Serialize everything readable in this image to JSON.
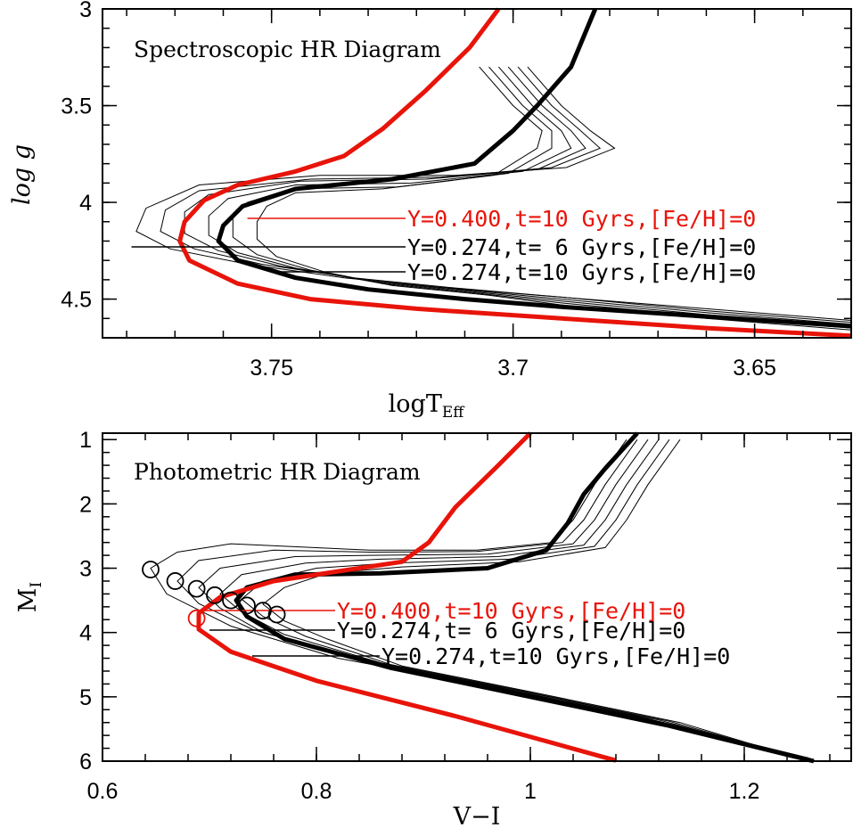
{
  "colors": {
    "black": "#000000",
    "red": "#e8140a",
    "background": "#ffffff"
  },
  "chart_data": [
    {
      "type": "line",
      "title": "Spectroscopic HR Diagram",
      "xlabel": "logT",
      "xlabel_sub": "Eff",
      "ylabel": "log g",
      "xlim": [
        3.785,
        3.63
      ],
      "ylim": [
        4.7,
        3.0
      ],
      "x_ticks": [
        3.75,
        3.7,
        3.65
      ],
      "x_tick_labels": [
        "3.75",
        "3.7",
        "3.65"
      ],
      "y_ticks": [
        3,
        3.5,
        4,
        4.5
      ],
      "y_tick_labels": [
        "3",
        "3.5",
        "4",
        "4.5"
      ],
      "x_minor_step": 0.01,
      "y_minor_step": 0.1,
      "thin_series": [
        [
          [
            3.697,
            3.3
          ],
          [
            3.69,
            3.5
          ],
          [
            3.684,
            3.63
          ],
          [
            3.679,
            3.72
          ],
          [
            3.689,
            3.82
          ],
          [
            3.712,
            3.86
          ],
          [
            3.74,
            3.86
          ],
          [
            3.765,
            3.91
          ],
          [
            3.776,
            4.03
          ],
          [
            3.778,
            4.15
          ],
          [
            3.771,
            4.24
          ],
          [
            3.755,
            4.32
          ],
          [
            3.735,
            4.39
          ],
          [
            3.715,
            4.44
          ],
          [
            3.69,
            4.49
          ],
          [
            3.66,
            4.55
          ],
          [
            3.63,
            4.61
          ]
        ],
        [
          [
            3.699,
            3.3
          ],
          [
            3.692,
            3.5
          ],
          [
            3.686,
            3.63
          ],
          [
            3.682,
            3.72
          ],
          [
            3.692,
            3.82
          ],
          [
            3.715,
            3.87
          ],
          [
            3.742,
            3.88
          ],
          [
            3.765,
            3.94
          ],
          [
            3.772,
            4.04
          ],
          [
            3.773,
            4.15
          ],
          [
            3.766,
            4.24
          ],
          [
            3.752,
            4.32
          ],
          [
            3.733,
            4.39
          ],
          [
            3.713,
            4.44
          ],
          [
            3.69,
            4.49
          ],
          [
            3.66,
            4.56
          ],
          [
            3.63,
            4.62
          ]
        ],
        [
          [
            3.701,
            3.3
          ],
          [
            3.694,
            3.5
          ],
          [
            3.688,
            3.63
          ],
          [
            3.685,
            3.72
          ],
          [
            3.695,
            3.83
          ],
          [
            3.718,
            3.88
          ],
          [
            3.744,
            3.89
          ],
          [
            3.763,
            3.96
          ],
          [
            3.768,
            4.05
          ],
          [
            3.768,
            4.16
          ],
          [
            3.761,
            4.25
          ],
          [
            3.748,
            4.33
          ],
          [
            3.731,
            4.4
          ],
          [
            3.711,
            4.45
          ],
          [
            3.69,
            4.5
          ],
          [
            3.66,
            4.57
          ],
          [
            3.63,
            4.63
          ]
        ],
        [
          [
            3.703,
            3.3
          ],
          [
            3.696,
            3.5
          ],
          [
            3.69,
            3.63
          ],
          [
            3.688,
            3.72
          ],
          [
            3.698,
            3.84
          ],
          [
            3.721,
            3.9
          ],
          [
            3.745,
            3.91
          ],
          [
            3.759,
            3.98
          ],
          [
            3.763,
            4.07
          ],
          [
            3.763,
            4.17
          ],
          [
            3.757,
            4.26
          ],
          [
            3.745,
            4.34
          ],
          [
            3.729,
            4.41
          ],
          [
            3.709,
            4.46
          ],
          [
            3.69,
            4.51
          ],
          [
            3.66,
            4.58
          ],
          [
            3.63,
            4.64
          ]
        ],
        [
          [
            3.705,
            3.3
          ],
          [
            3.698,
            3.5
          ],
          [
            3.692,
            3.63
          ],
          [
            3.692,
            3.72
          ],
          [
            3.701,
            3.85
          ],
          [
            3.724,
            3.92
          ],
          [
            3.746,
            3.93
          ],
          [
            3.755,
            4.0
          ],
          [
            3.758,
            4.08
          ],
          [
            3.758,
            4.18
          ],
          [
            3.753,
            4.27
          ],
          [
            3.742,
            4.35
          ],
          [
            3.727,
            4.42
          ],
          [
            3.707,
            4.47
          ],
          [
            3.69,
            4.52
          ],
          [
            3.66,
            4.59
          ],
          [
            3.63,
            4.65
          ]
        ],
        [
          [
            3.707,
            3.3
          ],
          [
            3.7,
            3.5
          ],
          [
            3.694,
            3.63
          ],
          [
            3.695,
            3.72
          ],
          [
            3.704,
            3.86
          ],
          [
            3.727,
            3.93
          ],
          [
            3.745,
            3.95
          ],
          [
            3.751,
            4.02
          ],
          [
            3.753,
            4.1
          ],
          [
            3.753,
            4.19
          ],
          [
            3.749,
            4.28
          ],
          [
            3.739,
            4.36
          ],
          [
            3.725,
            4.43
          ],
          [
            3.705,
            4.48
          ],
          [
            3.69,
            4.53
          ],
          [
            3.66,
            4.6
          ],
          [
            3.63,
            4.66
          ]
        ]
      ],
      "series": [
        {
          "name": "Y=0.274,t= 6 Gyrs,[Fe/H]=0",
          "color": "#000000",
          "points": [
            [
              3.683,
              3.0
            ],
            [
              3.688,
              3.3
            ],
            [
              3.695,
              3.5
            ],
            [
              3.7,
              3.63
            ],
            [
              3.708,
              3.8
            ],
            [
              3.725,
              3.88
            ],
            [
              3.745,
              3.93
            ],
            [
              3.756,
              4.02
            ],
            [
              3.76,
              4.12
            ],
            [
              3.761,
              4.2
            ],
            [
              3.757,
              4.3
            ],
            [
              3.745,
              4.39
            ],
            [
              3.73,
              4.45
            ],
            [
              3.71,
              4.5
            ],
            [
              3.69,
              4.54
            ],
            [
              3.66,
              4.59
            ],
            [
              3.63,
              4.64
            ]
          ]
        },
        {
          "name": "Y=0.400,t=10 Gyrs,[Fe/H]=0",
          "color": "#e8140a",
          "points": [
            [
              3.703,
              3.0
            ],
            [
              3.709,
              3.2
            ],
            [
              3.718,
              3.42
            ],
            [
              3.727,
              3.62
            ],
            [
              3.735,
              3.76
            ],
            [
              3.745,
              3.84
            ],
            [
              3.757,
              3.91
            ],
            [
              3.764,
              3.99
            ],
            [
              3.768,
              4.1
            ],
            [
              3.769,
              4.2
            ],
            [
              3.767,
              4.3
            ],
            [
              3.757,
              4.42
            ],
            [
              3.742,
              4.5
            ],
            [
              3.72,
              4.55
            ],
            [
              3.69,
              4.6
            ],
            [
              3.66,
              4.65
            ],
            [
              3.63,
              4.69
            ]
          ]
        }
      ],
      "legend": [
        {
          "text": "Y=0.400,t=10 Gyrs,[Fe/H]=0",
          "color": "#e8140a",
          "from": [
            3.755,
            4.08
          ]
        },
        {
          "text": "Y=0.274,t= 6 Gyrs,[Fe/H]=0",
          "color": "#000000",
          "from": [
            3.779,
            4.22
          ]
        },
        {
          "text": "Y=0.274,t=10 Gyrs,[Fe/H]=0",
          "color": "#000000",
          "from": [
            3.749,
            4.35
          ]
        }
      ]
    },
    {
      "type": "line",
      "title": "Photometric HR Diagram",
      "xlabel": "V−I",
      "ylabel": "M",
      "ylabel_sub": "I",
      "xlim": [
        0.6,
        1.3
      ],
      "ylim": [
        6,
        0.9
      ],
      "x_ticks": [
        0.6,
        0.8,
        1,
        1.2
      ],
      "x_tick_labels": [
        "0.6",
        "0.8",
        "1",
        "1.2"
      ],
      "y_ticks": [
        1,
        2,
        3,
        4,
        5,
        6
      ],
      "y_tick_labels": [
        "1",
        "2",
        "3",
        "4",
        "5",
        "6"
      ],
      "x_minor_step": 0.04,
      "y_minor_step": 0.2,
      "thin_series": [
        [
          [
            1.09,
            1.0
          ],
          [
            1.06,
            1.7
          ],
          [
            1.04,
            2.25
          ],
          [
            1.02,
            2.6
          ],
          [
            0.95,
            2.72
          ],
          [
            0.85,
            2.72
          ],
          [
            0.72,
            2.62
          ],
          [
            0.67,
            2.75
          ],
          [
            0.645,
            3.0
          ],
          [
            0.66,
            3.4
          ],
          [
            0.72,
            3.9
          ],
          [
            0.82,
            4.4
          ],
          [
            0.95,
            4.8
          ],
          [
            1.1,
            5.3
          ],
          [
            1.26,
            5.95
          ]
        ],
        [
          [
            1.1,
            1.0
          ],
          [
            1.07,
            1.7
          ],
          [
            1.05,
            2.25
          ],
          [
            1.03,
            2.6
          ],
          [
            0.95,
            2.74
          ],
          [
            0.85,
            2.75
          ],
          [
            0.76,
            2.72
          ],
          [
            0.69,
            2.88
          ],
          [
            0.67,
            3.2
          ],
          [
            0.69,
            3.55
          ],
          [
            0.74,
            3.95
          ],
          [
            0.84,
            4.42
          ],
          [
            0.96,
            4.82
          ],
          [
            1.1,
            5.32
          ],
          [
            1.26,
            5.96
          ]
        ],
        [
          [
            1.11,
            1.0
          ],
          [
            1.08,
            1.7
          ],
          [
            1.06,
            2.25
          ],
          [
            1.04,
            2.62
          ],
          [
            0.96,
            2.78
          ],
          [
            0.85,
            2.8
          ],
          [
            0.78,
            2.82
          ],
          [
            0.71,
            3.0
          ],
          [
            0.69,
            3.3
          ],
          [
            0.71,
            3.62
          ],
          [
            0.75,
            4.0
          ],
          [
            0.85,
            4.45
          ],
          [
            0.97,
            4.85
          ],
          [
            1.11,
            5.34
          ],
          [
            1.26,
            5.97
          ]
        ],
        [
          [
            1.12,
            1.0
          ],
          [
            1.09,
            1.7
          ],
          [
            1.07,
            2.25
          ],
          [
            1.05,
            2.64
          ],
          [
            0.97,
            2.82
          ],
          [
            0.86,
            2.86
          ],
          [
            0.79,
            2.92
          ],
          [
            0.73,
            3.1
          ],
          [
            0.71,
            3.4
          ],
          [
            0.73,
            3.68
          ],
          [
            0.77,
            4.03
          ],
          [
            0.86,
            4.47
          ],
          [
            0.98,
            4.87
          ],
          [
            1.12,
            5.36
          ],
          [
            1.26,
            5.98
          ]
        ],
        [
          [
            1.13,
            1.0
          ],
          [
            1.1,
            1.7
          ],
          [
            1.08,
            2.25
          ],
          [
            1.06,
            2.66
          ],
          [
            0.98,
            2.86
          ],
          [
            0.87,
            2.92
          ],
          [
            0.8,
            3.0
          ],
          [
            0.75,
            3.2
          ],
          [
            0.73,
            3.48
          ],
          [
            0.75,
            3.75
          ],
          [
            0.79,
            4.06
          ],
          [
            0.87,
            4.5
          ],
          [
            0.99,
            4.9
          ],
          [
            1.13,
            5.38
          ],
          [
            1.26,
            5.99
          ]
        ],
        [
          [
            1.14,
            1.0
          ],
          [
            1.11,
            1.7
          ],
          [
            1.09,
            2.25
          ],
          [
            1.07,
            2.68
          ],
          [
            0.99,
            2.9
          ],
          [
            0.88,
            2.98
          ],
          [
            0.81,
            3.08
          ],
          [
            0.77,
            3.3
          ],
          [
            0.75,
            3.56
          ],
          [
            0.77,
            3.82
          ],
          [
            0.81,
            4.1
          ],
          [
            0.88,
            4.52
          ],
          [
            1.0,
            4.92
          ],
          [
            1.14,
            5.4
          ],
          [
            1.26,
            6.0
          ]
        ]
      ],
      "series": [
        {
          "name": "Y=0.274,t= 6 Gyrs,[Fe/H]=0",
          "color": "#000000",
          "points": [
            [
              1.1,
              0.9
            ],
            [
              1.07,
              1.45
            ],
            [
              1.05,
              1.85
            ],
            [
              1.035,
              2.3
            ],
            [
              1.015,
              2.72
            ],
            [
              0.96,
              3.0
            ],
            [
              0.86,
              3.08
            ],
            [
              0.78,
              3.1
            ],
            [
              0.735,
              3.3
            ],
            [
              0.725,
              3.5
            ],
            [
              0.735,
              3.75
            ],
            [
              0.77,
              4.1
            ],
            [
              0.87,
              4.55
            ],
            [
              1.0,
              5.0
            ],
            [
              1.13,
              5.45
            ],
            [
              1.265,
              6.0
            ]
          ]
        },
        {
          "name": "Y=0.400,t=10 Gyrs,[Fe/H]=0",
          "color": "#e8140a",
          "points": [
            [
              1.0,
              0.9
            ],
            [
              0.97,
              1.4
            ],
            [
              0.93,
              2.05
            ],
            [
              0.905,
              2.6
            ],
            [
              0.88,
              2.9
            ],
            [
              0.82,
              3.05
            ],
            [
              0.76,
              3.2
            ],
            [
              0.71,
              3.45
            ],
            [
              0.69,
              3.7
            ],
            [
              0.69,
              3.95
            ],
            [
              0.72,
              4.3
            ],
            [
              0.8,
              4.75
            ],
            [
              0.93,
              5.3
            ],
            [
              1.08,
              5.99
            ]
          ]
        }
      ],
      "markers": [
        [
          0.645,
          3.02
        ],
        [
          0.668,
          3.2
        ],
        [
          0.688,
          3.32
        ],
        [
          0.705,
          3.42
        ],
        [
          0.72,
          3.5
        ],
        [
          0.735,
          3.58
        ],
        [
          0.75,
          3.66
        ],
        [
          0.763,
          3.72
        ]
      ],
      "red_markers": [
        [
          0.688,
          3.78
        ]
      ],
      "legend": [
        {
          "text": "Y=0.400,t=10 Gyrs,[Fe/H]=0",
          "color": "#e8140a",
          "from": [
            0.688,
            3.7
          ]
        },
        {
          "text": "Y=0.274,t= 6 Gyrs,[Fe/H]=0",
          "color": "#000000",
          "from": [
            0.7,
            4.0
          ]
        },
        {
          "text": "Y=0.274,t=10 Gyrs,[Fe/H]=0",
          "color": "#000000",
          "from": [
            0.74,
            4.35
          ]
        }
      ]
    }
  ]
}
